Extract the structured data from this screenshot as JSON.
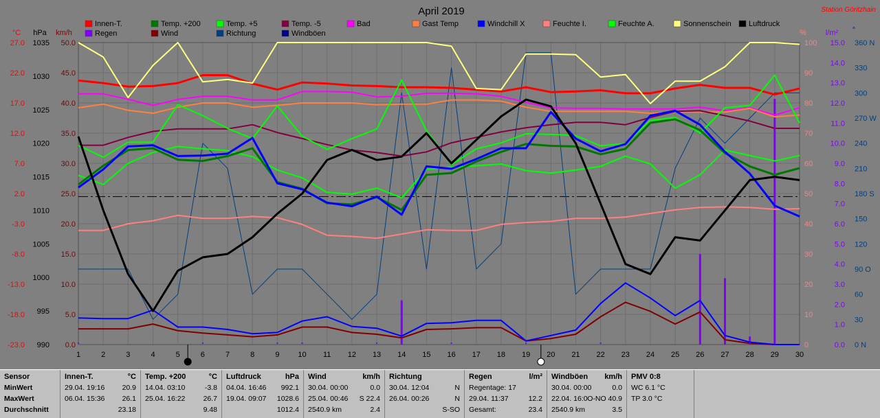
{
  "title": "April 2019",
  "station": "Station Göritzhain",
  "colors": {
    "background": "#808080",
    "innen": "#ff0000",
    "temp200": "#007700",
    "temp5": "#00ff00",
    "tempm5": "#800040",
    "bad": "#ff00ff",
    "gast": "#ff8040",
    "windchill": "#0000ff",
    "feuchteI": "#ff8080",
    "feuchteA": "#00ff00",
    "sonne": "#ffff80",
    "luftdruck": "#000000",
    "regen": "#8000ff",
    "wind": "#800000",
    "richtung": "#003f7f",
    "windboeen": "#000080"
  },
  "legend": [
    {
      "label": "Innen-T.",
      "color": "#ff0000"
    },
    {
      "label": "Temp. +200",
      "color": "#007700"
    },
    {
      "label": "Temp. +5",
      "color": "#00ff00"
    },
    {
      "label": "Temp. -5",
      "color": "#800040"
    },
    {
      "label": "Bad",
      "color": "#ff00ff"
    },
    {
      "label": "Gast Temp",
      "color": "#ff8040"
    },
    {
      "label": "Windchill X",
      "color": "#0000ff"
    },
    {
      "label": "Feuchte I.",
      "color": "#ff8080"
    },
    {
      "label": "Feuchte A.",
      "color": "#00ff00"
    },
    {
      "label": "Sonnenschein",
      "color": "#ffff80"
    },
    {
      "label": "Luftdruck",
      "color": "#000000"
    },
    {
      "label": "Regen",
      "color": "#8000ff"
    },
    {
      "label": "Wind",
      "color": "#800000"
    },
    {
      "label": "Richtung",
      "color": "#003f7f"
    },
    {
      "label": "Windböen",
      "color": "#000080"
    }
  ],
  "axis_units": {
    "temp": "°C",
    "hpa": "hPa",
    "kmh": "km/h",
    "pct": "%",
    "lm2": "l/m²",
    "deg": "°"
  },
  "axis_ticks": {
    "temp": [
      "27.0",
      "22.0",
      "17.0",
      "12.0",
      "7.0",
      "2.0",
      "-3.0",
      "-8.0",
      "-13.0",
      "-18.0",
      "-23.0"
    ],
    "hpa": [
      "1035",
      "1030",
      "1025",
      "1020",
      "1015",
      "1010",
      "1005",
      "1000",
      "995",
      "990"
    ],
    "kmh": [
      "50.0",
      "45.0",
      "40.0",
      "35.0",
      "30.0",
      "25.0",
      "20.0",
      "15.0",
      "10.0",
      "5.0",
      "0.0"
    ],
    "pct": [
      "100",
      "90",
      "80",
      "70",
      "60",
      "50",
      "40",
      "30",
      "20",
      "10",
      "0"
    ],
    "lm2": [
      "15.0",
      "14.0",
      "13.0",
      "12.0",
      "11.0",
      "10.0",
      "9.0",
      "8.0",
      "7.0",
      "6.0",
      "5.0",
      "4.0",
      "3.0",
      "2.0",
      "1.0",
      "0.0"
    ],
    "deg": [
      "360 N",
      "330",
      "300",
      "270 W",
      "240",
      "210",
      "180 S",
      "150",
      "120",
      "90 O",
      "60",
      "30",
      "0 N"
    ],
    "days": [
      "1",
      "2",
      "3",
      "4",
      "5",
      "6",
      "7",
      "8",
      "9",
      "10",
      "11",
      "12",
      "13",
      "14",
      "15",
      "16",
      "17",
      "18",
      "19",
      "20",
      "21",
      "22",
      "23",
      "24",
      "25",
      "26",
      "27",
      "28",
      "29",
      "30"
    ]
  },
  "chart_data": {
    "type": "line",
    "title": "April 2019",
    "x": [
      1,
      2,
      3,
      4,
      5,
      6,
      7,
      8,
      9,
      10,
      11,
      12,
      13,
      14,
      15,
      16,
      17,
      18,
      19,
      20,
      21,
      22,
      23,
      24,
      25,
      26,
      27,
      28,
      29,
      30
    ],
    "temp_range": [
      -23,
      27
    ],
    "kmh_range": [
      0,
      50
    ],
    "hpa_range": [
      990,
      1035
    ],
    "pct_range": [
      0,
      100
    ],
    "lm2_range": [
      0,
      15
    ],
    "deg_range": [
      0,
      360
    ],
    "dashed_reference_kmh": 24.5,
    "series_kmh": [
      {
        "name": "Innen-T.",
        "color": "#ff0000",
        "width": 3,
        "values": [
          43.7,
          43.3,
          42.7,
          42.8,
          43.3,
          44.6,
          44.6,
          43.2,
          42.2,
          43.4,
          43.2,
          42.9,
          42.8,
          42.6,
          42.6,
          42.5,
          42.2,
          41.9,
          42.6,
          41.8,
          41.9,
          42.1,
          41.6,
          41.6,
          42.4,
          43.0,
          42.5,
          42.5,
          41.4,
          42.4
        ]
      },
      {
        "name": "Bad",
        "color": "#ff00ff",
        "width": 2,
        "values": [
          41.5,
          41.5,
          40.6,
          39.6,
          40.6,
          41.1,
          41.1,
          40.5,
          40.5,
          41.9,
          41.9,
          41.8,
          41.0,
          41.1,
          41.6,
          41.6,
          41.5,
          41.1,
          40.1,
          39.2,
          39.1,
          39.1,
          39.0,
          39.0,
          39.0,
          39.3,
          38.7,
          39.2,
          38.0,
          39.2
        ]
      },
      {
        "name": "Gast Temp",
        "color": "#ff8040",
        "width": 2,
        "values": [
          39.2,
          39.8,
          38.8,
          38.3,
          39.3,
          40.0,
          40.0,
          39.3,
          39.6,
          40.0,
          40.0,
          40.0,
          39.7,
          39.8,
          39.8,
          40.5,
          40.5,
          40.3,
          39.3,
          38.6,
          38.6,
          38.6,
          38.6,
          38.3,
          38.5,
          38.5,
          38.5,
          39.1,
          37.7,
          38.0
        ]
      },
      {
        "name": "Sonnenschein",
        "color": "#ffff80",
        "width": 2,
        "values": [
          50.0,
          47.6,
          40.9,
          46.2,
          50.0,
          43.5,
          43.9,
          43.3,
          50.0,
          50.0,
          50.0,
          50.0,
          50.0,
          50.0,
          50.0,
          49.4,
          42.4,
          42.2,
          48.1,
          48.1,
          48.0,
          44.3,
          44.7,
          39.9,
          43.6,
          43.6,
          46.0,
          50.0,
          50.0,
          49.7
        ]
      },
      {
        "name": "Temp. -5",
        "color": "#800040",
        "width": 2,
        "values": [
          33.0,
          33.0,
          34.3,
          35.3,
          35.7,
          35.7,
          35.7,
          36.4,
          35.1,
          34.1,
          33.1,
          32.2,
          31.8,
          31.2,
          31.9,
          33.4,
          34.3,
          35.2,
          35.9,
          36.4,
          36.8,
          36.8,
          36.4,
          37.6,
          38.6,
          38.7,
          37.9,
          37.0,
          35.8,
          35.8
        ]
      },
      {
        "name": "Temp. +5",
        "color": "#00ff00",
        "width": 2,
        "values": [
          33.0,
          31.0,
          33.5,
          33.5,
          39.7,
          37.9,
          35.8,
          34.1,
          39.5,
          34.5,
          32.3,
          34.1,
          35.7,
          43.8,
          35.4,
          29.8,
          32.4,
          33.4,
          34.9,
          34.8,
          34.6,
          32.9,
          33.3,
          37.1,
          37.6,
          35.0,
          39.2,
          39.6,
          44.6,
          36.7
        ]
      },
      {
        "name": "Feuchte A.",
        "color": "#00ff00",
        "width": 2,
        "values": [
          28.0,
          26.5,
          30.0,
          31.8,
          32.8,
          32.4,
          32.1,
          31.1,
          28.9,
          27.6,
          25.2,
          24.9,
          25.9,
          24.3,
          29.0,
          29.4,
          29.6,
          29.9,
          28.8,
          28.4,
          28.9,
          29.5,
          31.2,
          29.9,
          25.9,
          28.1,
          32.2,
          31.3,
          30.4,
          31.3
        ]
      },
      {
        "name": "Feuchte I.",
        "color": "#ff8080",
        "width": 2,
        "values": [
          18.9,
          18.9,
          20.0,
          20.5,
          21.4,
          20.9,
          20.9,
          21.2,
          21.0,
          19.9,
          18.1,
          17.9,
          17.6,
          18.3,
          19.0,
          18.9,
          18.9,
          19.9,
          20.2,
          20.4,
          20.9,
          20.9,
          21.1,
          21.7,
          22.3,
          22.7,
          22.8,
          22.7,
          22.4,
          22.5
        ]
      },
      {
        "name": "Temp. +200",
        "color": "#007700",
        "width": 3,
        "values": [
          26.5,
          29.6,
          32.2,
          32.5,
          30.6,
          30.4,
          31.2,
          32.5,
          26.9,
          25.8,
          23.4,
          23.2,
          24.4,
          22.3,
          28.1,
          28.4,
          30.3,
          31.9,
          33.2,
          32.9,
          32.8,
          31.5,
          32.4,
          36.7,
          37.3,
          35.5,
          31.7,
          29.5,
          28.1,
          29.2
        ]
      },
      {
        "name": "Windchill X",
        "color": "#0000ff",
        "width": 3,
        "values": [
          26.0,
          29.0,
          32.8,
          33.0,
          31.2,
          31.3,
          31.6,
          34.2,
          26.7,
          25.7,
          23.5,
          22.9,
          24.5,
          21.5,
          29.5,
          29.1,
          30.7,
          32.5,
          32.5,
          38.5,
          34.1,
          32.0,
          33.2,
          37.9,
          38.7,
          36.4,
          31.9,
          28.3,
          23.0,
          21.2
        ]
      },
      {
        "name": "Wind",
        "color": "#800000",
        "width": 2,
        "values": [
          2.6,
          2.6,
          2.6,
          3.4,
          2.3,
          1.9,
          1.6,
          1.3,
          1.6,
          2.9,
          2.9,
          2.0,
          1.7,
          1.1,
          2.5,
          2.6,
          2.8,
          2.8,
          0.6,
          1.0,
          1.7,
          4.6,
          7.0,
          5.5,
          3.4,
          5.4,
          0.8,
          0.2,
          0.0,
          0.0
        ]
      },
      {
        "name": "Windböen",
        "color": "#0000ff",
        "width": 2,
        "values": [
          4.4,
          4.3,
          4.3,
          5.7,
          2.9,
          2.9,
          2.5,
          1.8,
          2.0,
          3.9,
          4.6,
          3.0,
          2.7,
          1.4,
          3.5,
          3.6,
          4.0,
          4.0,
          0.6,
          1.5,
          2.4,
          6.8,
          10.2,
          7.7,
          4.8,
          7.3,
          1.5,
          0.4,
          0.0,
          0.0
        ]
      }
    ],
    "series_hpa": [
      {
        "name": "Luftdruck",
        "color": "#000000",
        "width": 3,
        "values": [
          1021.0,
          1010.0,
          1000.5,
          995.0,
          1001.0,
          1003.0,
          1003.5,
          1006.0,
          1009.5,
          1012.5,
          1017.5,
          1019.0,
          1017.5,
          1018.0,
          1021.5,
          1017.0,
          1020.5,
          1024.0,
          1026.5,
          1025.5,
          1020.0,
          1011.0,
          1002.0,
          1000.5,
          1006.0,
          1005.5,
          1010.0,
          1014.5,
          1015.0,
          1014.5
        ]
      }
    ],
    "series_deg": [
      {
        "name": "Richtung",
        "color": "#003f7f",
        "width": 1,
        "values": [
          90,
          90,
          90,
          30,
          60,
          240,
          210,
          60,
          90,
          90,
          60,
          30,
          60,
          300,
          90,
          330,
          90,
          120,
          348,
          348,
          60,
          90,
          90,
          90,
          210,
          270,
          240,
          270,
          300,
          300
        ]
      }
    ],
    "rain_bars_lm2": [
      {
        "day": 14,
        "value": 2.2
      },
      {
        "day": 26,
        "value": 4.5
      },
      {
        "day": 27,
        "value": 3.3
      },
      {
        "day": 28,
        "value": 0.4
      },
      {
        "day": 29,
        "value": 12.2
      }
    ],
    "moon_markers": [
      {
        "day": 5.4,
        "phase": "new"
      },
      {
        "day": 19.6,
        "phase": "full"
      }
    ]
  },
  "table": [
    {
      "header": "Sensor",
      "header_unit": "",
      "rows": [
        "MinWert",
        "MaxWert",
        "Durchschnitt"
      ]
    },
    {
      "header": "Innen-T.",
      "header_unit": "°C",
      "rows": [
        [
          "29.04.  19:16",
          "20.9"
        ],
        [
          "06.04.  15:36",
          "26.1"
        ],
        [
          "",
          "23.18"
        ]
      ]
    },
    {
      "header": "Temp. +200",
      "header_unit": "°C",
      "rows": [
        [
          "14.04.  03:10",
          "-3.8"
        ],
        [
          "25.04.  16:22",
          "26.7"
        ],
        [
          "",
          "9.48"
        ]
      ]
    },
    {
      "header": "Luftdruck",
      "header_unit": "hPa",
      "rows": [
        [
          "04.04.  16:46",
          "992.1"
        ],
        [
          "19.04.  09:07",
          "1028.6"
        ],
        [
          "",
          "1012.4"
        ]
      ]
    },
    {
      "header": "Wind",
      "header_unit": "km/h",
      "rows": [
        [
          "30.04.  00:00",
          "0.0"
        ],
        [
          "25.04.  00:46",
          "S 22.4"
        ],
        [
          "2540.9 km",
          "2.4"
        ]
      ]
    },
    {
      "header": "Richtung",
      "header_unit": "",
      "rows": [
        [
          "30.04.  12:04",
          "N"
        ],
        [
          "26.04.  00:26",
          "N"
        ],
        [
          "",
          "S-SO"
        ]
      ]
    },
    {
      "header": "Regen",
      "header_unit": "l/m²",
      "rows": [
        [
          "Regentage: 17",
          ""
        ],
        [
          "29.04.  11:37",
          "12.2"
        ],
        [
          "Gesamt:",
          "23.4"
        ]
      ]
    },
    {
      "header": "Windböen",
      "header_unit": "km/h",
      "rows": [
        [
          "30.04.  00:00",
          "0.0"
        ],
        [
          "22.04.  16:0",
          "O-NO 40.9"
        ],
        [
          "2540.9 km",
          "3.5"
        ]
      ]
    },
    {
      "header": "PMV 0:8",
      "header_unit": "",
      "rows": [
        "WC 6.1 °C",
        "TP 3.0 °C",
        ""
      ]
    }
  ]
}
